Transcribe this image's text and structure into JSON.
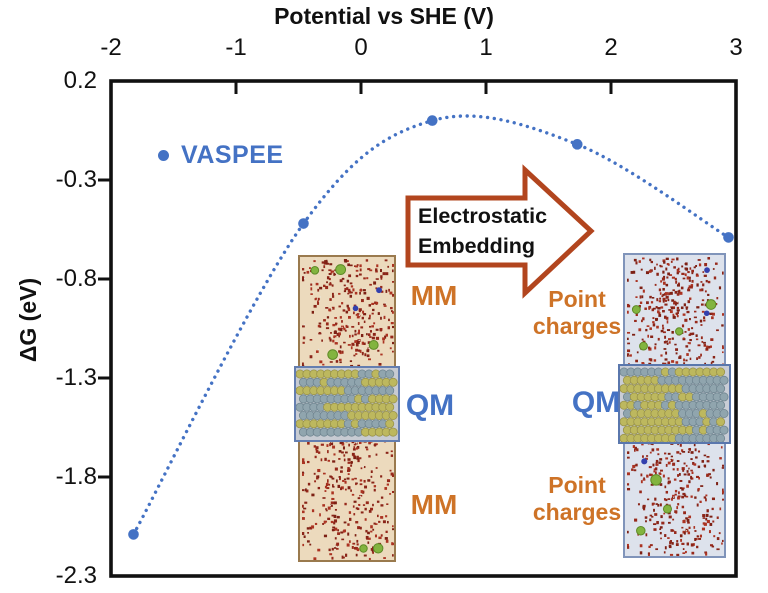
{
  "figure": {
    "title": "Potential vs SHE (V)",
    "y_axis_label": "ΔG (eV)",
    "legend": {
      "label": "VASPEE"
    },
    "arrow": {
      "line1": "Electrostatic",
      "line2": "Embedding"
    },
    "insets": {
      "left": {
        "top_label": "MM",
        "middle_label": "QM",
        "bottom_label": "MM"
      },
      "right": {
        "top_label": "Point charges",
        "middle_label": "QM",
        "bottom_label": "Point charges"
      }
    }
  },
  "chart_data": {
    "type": "scatter",
    "title": "Potential vs SHE (V)",
    "xlabel": "Potential vs SHE (V)",
    "ylabel": "ΔG (eV)",
    "x_axis_position": "top",
    "xlim": [
      -2,
      3
    ],
    "ylim": [
      -2.3,
      0.2
    ],
    "x_ticks": [
      -2,
      -1,
      0,
      1,
      2,
      3
    ],
    "y_ticks": [
      0.2,
      -0.3,
      -0.8,
      -1.3,
      -1.8,
      -2.3
    ],
    "grid": false,
    "legend_position": "upper-left-inside",
    "series": [
      {
        "name": "VASPEE",
        "style": "dotted curve with circle markers",
        "color": "#4472C4",
        "points": [
          {
            "x": -1.82,
            "y": -2.09
          },
          {
            "x": -0.46,
            "y": -0.52
          },
          {
            "x": 0.57,
            "y": 0.0
          },
          {
            "x": 1.73,
            "y": -0.12
          },
          {
            "x": 2.94,
            "y": -0.59
          }
        ]
      }
    ]
  },
  "colors": {
    "accent_blue": "#4472C4",
    "label_orange": "#CE7327",
    "arrow_border": "#B2451E",
    "axis": "#111111",
    "water_bg_left": "#ecdabd",
    "water_bg_right": "#dde2ec",
    "water_red": "#97291b",
    "ion_green": "#82b43f",
    "ion_blue": "#3340ad",
    "slab_yellow": "#bdb85e",
    "slab_gray": "#90a5ae"
  }
}
